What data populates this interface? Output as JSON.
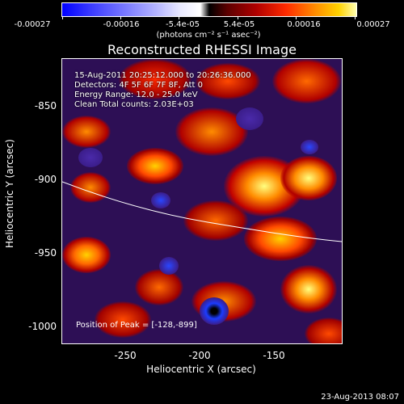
{
  "colorbar": {
    "tick_labels": [
      "-0.00027",
      "-0.00016",
      "-5.4e-05",
      "5.4e-05",
      "0.00016",
      "0.00027"
    ],
    "units": "(photons cm⁻² s⁻¹ asec⁻²)"
  },
  "plot": {
    "title": "Reconstructed RHESSI Image",
    "info_lines": [
      "15-Aug-2011 20:25:12.000 to 20:26:36.000",
      "Detectors: 4F 5F 6F 7F 8F, Att 0",
      "Energy Range: 12.0 - 25.0 keV",
      "Clean     Total counts: 2.03E+03"
    ],
    "peak_label": "Position of Peak = [-128,-899]",
    "xlabel": "Heliocentric X (arcsec)",
    "ylabel": "Heliocentric Y (arcsec)",
    "x_ticks": [
      "-250",
      "-200",
      "-150"
    ],
    "y_ticks": [
      "-850",
      "-900",
      "-950",
      "-1000"
    ],
    "colors": {
      "negative": "#2d0f55",
      "positive_low": "#b00000",
      "positive_high": "#ffff80",
      "limb": "#ffffff"
    }
  },
  "footer": {
    "timestamp": "23-Aug-2013 08:07"
  }
}
